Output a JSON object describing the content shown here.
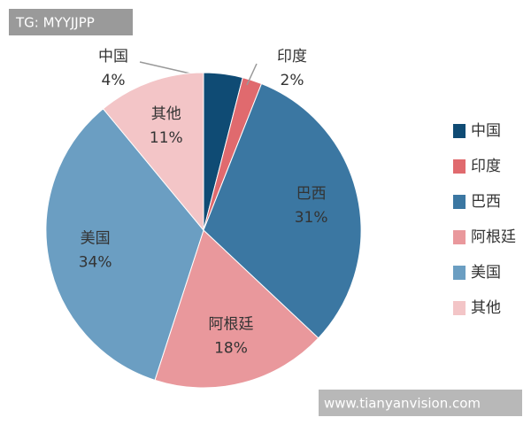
{
  "chart_data": {
    "type": "pie",
    "categories": [
      "中国",
      "印度",
      "巴西",
      "阿根廷",
      "美国",
      "其他"
    ],
    "values": [
      4,
      2,
      31,
      18,
      34,
      11
    ],
    "value_labels": [
      "4%",
      "2%",
      "31%",
      "18%",
      "34%",
      "11%"
    ],
    "colors": [
      "#0f4b74",
      "#e06a6e",
      "#3b77a2",
      "#e9989c",
      "#6b9ec2",
      "#f3c5c7"
    ],
    "legend": "right"
  },
  "watermarks": [
    "TG: MYYJJPP",
    "www.tianyanvision.com"
  ]
}
